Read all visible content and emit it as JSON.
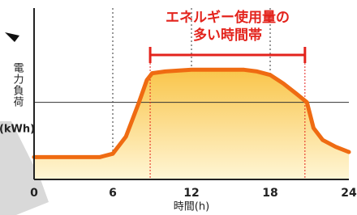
{
  "chart_data": {
    "type": "area",
    "xlabel": "時間(h)",
    "ylabel": [
      "電力負荷",
      "(kWh)"
    ],
    "annotation": [
      "エネルギー使用量の",
      "多い時間帯"
    ],
    "highlight_range": [
      8.85,
      20.65
    ],
    "reference_line": 45,
    "x": [
      0,
      5,
      6,
      7,
      8,
      8.6,
      9,
      10,
      12,
      14,
      16,
      17,
      18,
      19,
      20,
      20.8,
      21.3,
      22,
      23,
      24
    ],
    "values": [
      13,
      13,
      15,
      25,
      45,
      58,
      62,
      63,
      64,
      64,
      64,
      63,
      61,
      56,
      50,
      45,
      30,
      23,
      19,
      16
    ],
    "color": "#ef6b12",
    "xlim": [
      0,
      24
    ],
    "xticks": [
      0,
      6,
      12,
      18,
      24
    ],
    "ylim": [
      0,
      100
    ],
    "dotted_grid_x": true
  }
}
